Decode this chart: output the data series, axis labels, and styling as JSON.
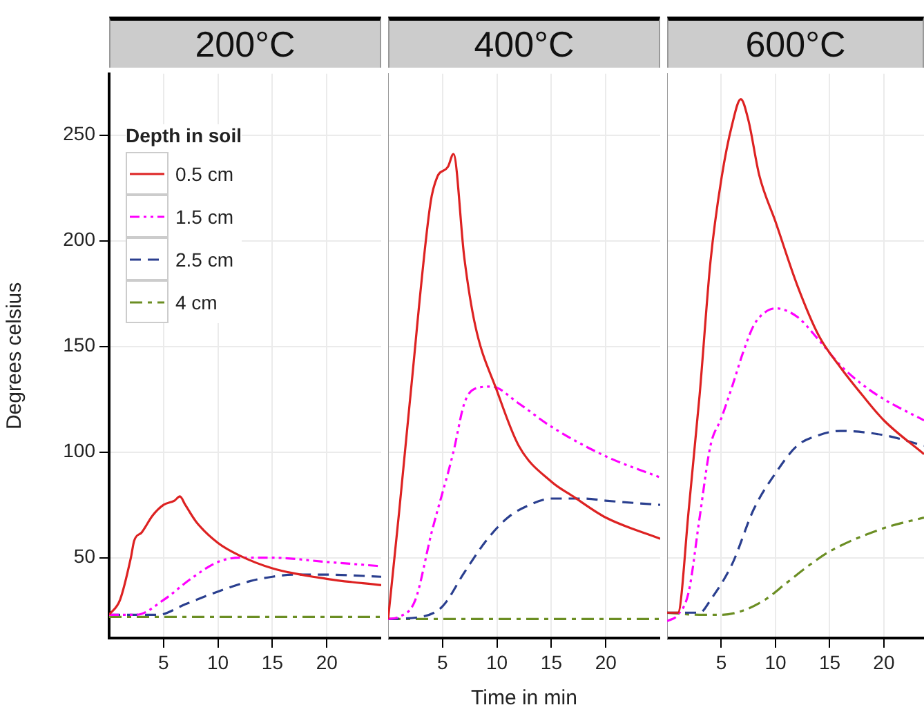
{
  "chart_data": [
    {
      "type": "line",
      "title": "200°C",
      "ylabel": "Degrees celsius",
      "legend_title": "Depth in soil",
      "legend": "top left",
      "grid": true,
      "xlim": [
        0,
        25
      ],
      "xticks": [
        5,
        10,
        15,
        20
      ],
      "ylim": [
        12,
        279
      ],
      "yticks": [
        50,
        100,
        150,
        200,
        250
      ],
      "series": [
        {
          "name": "0.5 cm",
          "color": "#dd2222",
          "line_style": "solid",
          "x": [
            0,
            1,
            2,
            2.3,
            3,
            4,
            5,
            6,
            6.5,
            7,
            8,
            10,
            12,
            15,
            20,
            25
          ],
          "values": [
            23,
            30,
            50,
            58,
            62,
            70,
            75,
            77,
            79,
            75,
            67,
            57,
            51,
            45,
            40,
            37
          ]
        },
        {
          "name": "1.5 cm",
          "color": "#ff00ff",
          "line_style": "dotted",
          "x": [
            0,
            2.5,
            5,
            7.5,
            10,
            12,
            15,
            20,
            25
          ],
          "values": [
            23,
            23,
            30,
            40,
            48,
            50,
            50,
            48,
            46
          ]
        },
        {
          "name": "2.5 cm",
          "color": "#2a3f8f",
          "line_style": "dashed",
          "x": [
            0,
            4.5,
            7,
            10,
            13,
            15,
            17,
            20,
            25
          ],
          "values": [
            23,
            23,
            28,
            34,
            39,
            41,
            42,
            42,
            41
          ]
        },
        {
          "name": "4 cm",
          "color": "#6b8e23",
          "line_style": "dashdot",
          "x": [
            0,
            25
          ],
          "values": [
            22,
            22
          ]
        }
      ]
    },
    {
      "type": "line",
      "title": "400°C",
      "xlabel": "Time in min",
      "grid": true,
      "tick_labels": "x",
      "xlim": [
        0,
        25
      ],
      "xticks": [
        5,
        10,
        15,
        20
      ],
      "ylim": [
        12,
        279
      ],
      "yticks": [
        50,
        100,
        150,
        200,
        250
      ],
      "series": [
        {
          "color": "#dd2222",
          "line_style": "solid",
          "x": [
            0,
            1,
            2,
            3.9,
            4.5,
            5.5,
            6,
            7,
            8,
            10,
            12,
            15,
            17,
            20,
            25
          ],
          "values": [
            21,
            71,
            124,
            218,
            230,
            235,
            241,
            192,
            160,
            129,
            103,
            86,
            79,
            69,
            59
          ]
        },
        {
          "color": "#ff00ff",
          "line_style": "dotted",
          "x": [
            0,
            1,
            2.5,
            4,
            6,
            7,
            8,
            9.5,
            12,
            15,
            20,
            25
          ],
          "values": [
            21,
            22,
            30,
            62,
            100,
            123,
            130,
            131,
            123,
            112,
            98,
            88
          ]
        },
        {
          "color": "#2a3f8f",
          "line_style": "dashed",
          "x": [
            0,
            3,
            5,
            7,
            9,
            11,
            13,
            15,
            18,
            20,
            25
          ],
          "values": [
            21,
            22,
            27,
            43,
            58,
            69,
            75,
            78,
            78,
            77,
            75
          ]
        },
        {
          "color": "#6b8e23",
          "line_style": "dashdot",
          "x": [
            0,
            25
          ],
          "values": [
            21,
            21
          ]
        }
      ]
    },
    {
      "type": "line",
      "title": "600°C",
      "grid": true,
      "tick_labels": "x",
      "xlim": [
        0,
        23.7
      ],
      "xticks": [
        5,
        10,
        15,
        20
      ],
      "ylim": [
        12,
        279
      ],
      "yticks": [
        50,
        100,
        150,
        200,
        250
      ],
      "series": [
        {
          "color": "#dd2222",
          "line_style": "solid",
          "x": [
            0,
            1,
            2,
            3,
            4,
            5,
            6,
            6.8,
            7.5,
            8.5,
            10,
            12,
            14,
            16,
            18,
            20,
            23.7
          ],
          "values": [
            24,
            24,
            73,
            127,
            190,
            229,
            255,
            267,
            257,
            231,
            209,
            179,
            155,
            140,
            127,
            115,
            99
          ]
        },
        {
          "color": "#ff00ff",
          "line_style": "dotted",
          "x": [
            0,
            1,
            2,
            3,
            4,
            5,
            6,
            7,
            8,
            9,
            10,
            12,
            14,
            16,
            18,
            20,
            23.7
          ],
          "values": [
            20,
            23,
            34,
            69,
            103,
            116,
            131,
            147,
            160,
            166,
            168,
            164,
            153,
            141,
            132,
            125,
            115
          ]
        },
        {
          "color": "#2a3f8f",
          "line_style": "dashed",
          "x": [
            0,
            3,
            4,
            6,
            8,
            10,
            12,
            14,
            16,
            20,
            23.7
          ],
          "values": [
            24,
            24,
            30,
            47,
            73,
            90,
            103,
            108,
            110,
            108,
            103
          ]
        },
        {
          "color": "#6b8e23",
          "line_style": "dashdot",
          "x": [
            0,
            3,
            5,
            7,
            9,
            11,
            13,
            15,
            20,
            23.7
          ],
          "values": [
            24,
            23,
            23,
            25,
            30,
            38,
            46,
            53,
            64,
            69
          ]
        }
      ]
    }
  ]
}
